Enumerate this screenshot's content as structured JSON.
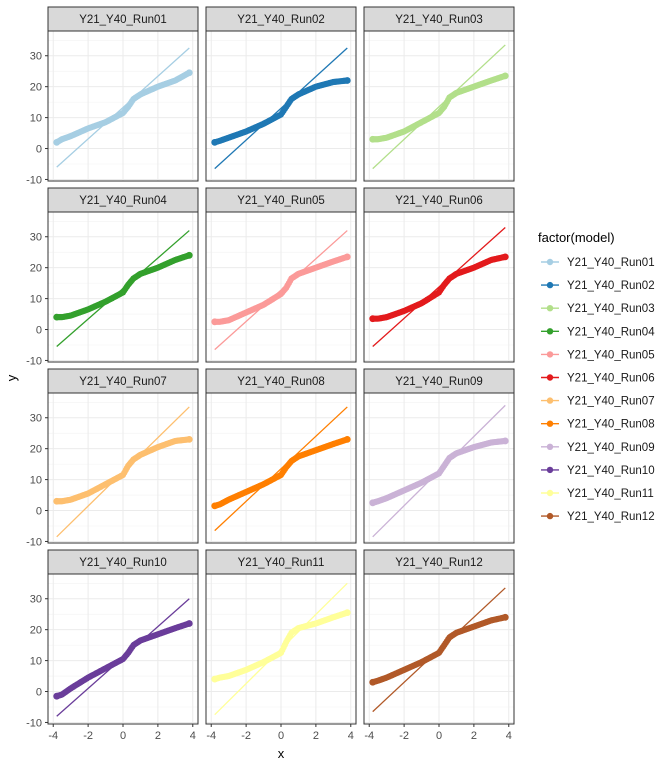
{
  "chart_data": {
    "type": "scatter",
    "xlabel": "x",
    "ylabel": "y",
    "xlim": [
      -4.3,
      4.3
    ],
    "ylim": [
      -10.5,
      38
    ],
    "x_ticks": [
      -4,
      -2,
      0,
      2,
      4
    ],
    "x_tick_labels": [
      "-4",
      "-2",
      "0",
      "2",
      "4"
    ],
    "y_ticks": [
      -10,
      0,
      10,
      20,
      30
    ],
    "y_tick_labels": [
      "-10",
      "0",
      "10",
      "20",
      "30"
    ],
    "grid": true,
    "legend": {
      "title": "factor(model)",
      "position": "right",
      "entries": [
        "Y21_Y40_Run01",
        "Y21_Y40_Run02",
        "Y21_Y40_Run03",
        "Y21_Y40_Run04",
        "Y21_Y40_Run05",
        "Y21_Y40_Run06",
        "Y21_Y40_Run07",
        "Y21_Y40_Run08",
        "Y21_Y40_Run09",
        "Y21_Y40_Run10",
        "Y21_Y40_Run11",
        "Y21_Y40_Run12"
      ]
    },
    "panels": [
      {
        "name": "Y21_Y40_Run01",
        "color": "#A6CEE3",
        "ref_line": [
          [
            -3.8,
            -6
          ],
          [
            3.8,
            32.5
          ]
        ],
        "points": [
          [
            -3.8,
            2
          ],
          [
            -3.5,
            3
          ],
          [
            -3,
            4
          ],
          [
            -2,
            6.5
          ],
          [
            -1,
            8.5
          ],
          [
            0,
            11.5
          ],
          [
            0.3,
            13.5
          ],
          [
            0.6,
            16
          ],
          [
            1,
            17.5
          ],
          [
            2,
            20
          ],
          [
            3,
            22
          ],
          [
            3.8,
            24.5
          ]
        ]
      },
      {
        "name": "Y21_Y40_Run02",
        "color": "#1F78B4",
        "ref_line": [
          [
            -3.8,
            -6.5
          ],
          [
            3.8,
            32.5
          ]
        ],
        "points": [
          [
            -3.8,
            2
          ],
          [
            -3.5,
            2.5
          ],
          [
            -3,
            3.5
          ],
          [
            -2,
            5.5
          ],
          [
            -1,
            8
          ],
          [
            0,
            11
          ],
          [
            0.3,
            13.5
          ],
          [
            0.6,
            16
          ],
          [
            1,
            17.5
          ],
          [
            2,
            20
          ],
          [
            3,
            21.5
          ],
          [
            3.8,
            22
          ]
        ]
      },
      {
        "name": "Y21_Y40_Run03",
        "color": "#B2DF8A",
        "ref_line": [
          [
            -3.8,
            -6.5
          ],
          [
            3.8,
            33.5
          ]
        ],
        "points": [
          [
            -3.8,
            3
          ],
          [
            -3.5,
            3
          ],
          [
            -3,
            3.5
          ],
          [
            -2,
            5.5
          ],
          [
            -1,
            8.5
          ],
          [
            0,
            11.5
          ],
          [
            0.3,
            13.5
          ],
          [
            0.6,
            16.5
          ],
          [
            1,
            18
          ],
          [
            2,
            20
          ],
          [
            3,
            22
          ],
          [
            3.8,
            23.5
          ]
        ]
      },
      {
        "name": "Y21_Y40_Run04",
        "color": "#33A02C",
        "ref_line": [
          [
            -3.8,
            -5.5
          ],
          [
            3.8,
            32
          ]
        ],
        "points": [
          [
            -3.8,
            4
          ],
          [
            -3.5,
            4
          ],
          [
            -3,
            4.5
          ],
          [
            -2,
            6.5
          ],
          [
            -1,
            9
          ],
          [
            0,
            12
          ],
          [
            0.3,
            14.5
          ],
          [
            0.6,
            16.5
          ],
          [
            1,
            18
          ],
          [
            2,
            20
          ],
          [
            3,
            22.5
          ],
          [
            3.8,
            24
          ]
        ]
      },
      {
        "name": "Y21_Y40_Run05",
        "color": "#FB9A99",
        "ref_line": [
          [
            -3.8,
            -6.5
          ],
          [
            3.8,
            32
          ]
        ],
        "points": [
          [
            -3.8,
            2.5
          ],
          [
            -3.5,
            2.5
          ],
          [
            -3,
            3
          ],
          [
            -2,
            5.5
          ],
          [
            -1,
            8
          ],
          [
            0,
            11.5
          ],
          [
            0.3,
            13.5
          ],
          [
            0.6,
            16.5
          ],
          [
            1,
            18
          ],
          [
            2,
            20
          ],
          [
            3,
            22
          ],
          [
            3.8,
            23.5
          ]
        ]
      },
      {
        "name": "Y21_Y40_Run06",
        "color": "#E31A1C",
        "ref_line": [
          [
            -3.8,
            -5.5
          ],
          [
            3.8,
            33
          ]
        ],
        "points": [
          [
            -3.8,
            3.5
          ],
          [
            -3.5,
            3.5
          ],
          [
            -3,
            4
          ],
          [
            -2,
            6
          ],
          [
            -1,
            8.5
          ],
          [
            0,
            12
          ],
          [
            0.3,
            14.5
          ],
          [
            0.6,
            16.5
          ],
          [
            1,
            18
          ],
          [
            2,
            20
          ],
          [
            3,
            22.5
          ],
          [
            3.8,
            23.5
          ]
        ]
      },
      {
        "name": "Y21_Y40_Run07",
        "color": "#FDBF6F",
        "ref_line": [
          [
            -3.8,
            -8.5
          ],
          [
            3.8,
            33.5
          ]
        ],
        "points": [
          [
            -3.8,
            3
          ],
          [
            -3.5,
            3
          ],
          [
            -3,
            3.5
          ],
          [
            -2,
            5.5
          ],
          [
            -1,
            8.5
          ],
          [
            0,
            11.5
          ],
          [
            0.3,
            14.5
          ],
          [
            0.6,
            16.5
          ],
          [
            1,
            18
          ],
          [
            2,
            20.5
          ],
          [
            3,
            22.5
          ],
          [
            3.8,
            23
          ]
        ]
      },
      {
        "name": "Y21_Y40_Run08",
        "color": "#FF7F00",
        "ref_line": [
          [
            -3.8,
            -6.5
          ],
          [
            3.8,
            33.5
          ]
        ],
        "points": [
          [
            -3.8,
            1.5
          ],
          [
            -3.5,
            2
          ],
          [
            -3,
            3.5
          ],
          [
            -2,
            6
          ],
          [
            -1,
            8.5
          ],
          [
            0,
            11.5
          ],
          [
            0.3,
            14
          ],
          [
            0.6,
            16
          ],
          [
            1,
            17.5
          ],
          [
            2,
            19.5
          ],
          [
            3,
            21.5
          ],
          [
            3.8,
            23
          ]
        ]
      },
      {
        "name": "Y21_Y40_Run09",
        "color": "#CAB2D6",
        "ref_line": [
          [
            -3.8,
            -8.5
          ],
          [
            3.8,
            34
          ]
        ],
        "points": [
          [
            -3.8,
            2.5
          ],
          [
            -3.5,
            3
          ],
          [
            -3,
            4
          ],
          [
            -2,
            6.5
          ],
          [
            -1,
            9
          ],
          [
            0,
            12
          ],
          [
            0.3,
            14.5
          ],
          [
            0.6,
            17
          ],
          [
            1,
            18.5
          ],
          [
            2,
            20.5
          ],
          [
            3,
            22
          ],
          [
            3.8,
            22.5
          ]
        ]
      },
      {
        "name": "Y21_Y40_Run10",
        "color": "#6A3D9A",
        "ref_line": [
          [
            -3.8,
            -8
          ],
          [
            3.8,
            30
          ]
        ],
        "points": [
          [
            -3.8,
            -1.5
          ],
          [
            -3.5,
            -1
          ],
          [
            -3,
            1
          ],
          [
            -2,
            4.5
          ],
          [
            -1,
            7.5
          ],
          [
            0,
            10.5
          ],
          [
            0.3,
            12.5
          ],
          [
            0.6,
            15
          ],
          [
            1,
            16.5
          ],
          [
            2,
            18.5
          ],
          [
            3,
            20.5
          ],
          [
            3.8,
            22
          ]
        ]
      },
      {
        "name": "Y21_Y40_Run11",
        "color": "#FFFF99",
        "ref_line": [
          [
            -3.8,
            -7.5
          ],
          [
            3.8,
            35
          ]
        ],
        "points": [
          [
            -3.8,
            4
          ],
          [
            -3.5,
            4.5
          ],
          [
            -3,
            5
          ],
          [
            -2,
            7
          ],
          [
            -1,
            9.5
          ],
          [
            0,
            12.5
          ],
          [
            0.3,
            16
          ],
          [
            0.6,
            19
          ],
          [
            1,
            20.5
          ],
          [
            2,
            22
          ],
          [
            3,
            24
          ],
          [
            3.8,
            25.5
          ]
        ]
      },
      {
        "name": "Y21_Y40_Run12",
        "color": "#B15928",
        "ref_line": [
          [
            -3.8,
            -6.5
          ],
          [
            3.8,
            33.5
          ]
        ],
        "points": [
          [
            -3.8,
            3
          ],
          [
            -3.5,
            3.5
          ],
          [
            -3,
            4.5
          ],
          [
            -2,
            7
          ],
          [
            -1,
            9.5
          ],
          [
            0,
            12.5
          ],
          [
            0.3,
            15
          ],
          [
            0.6,
            17.5
          ],
          [
            1,
            19
          ],
          [
            2,
            21
          ],
          [
            3,
            23
          ],
          [
            3.8,
            24
          ]
        ]
      }
    ]
  }
}
